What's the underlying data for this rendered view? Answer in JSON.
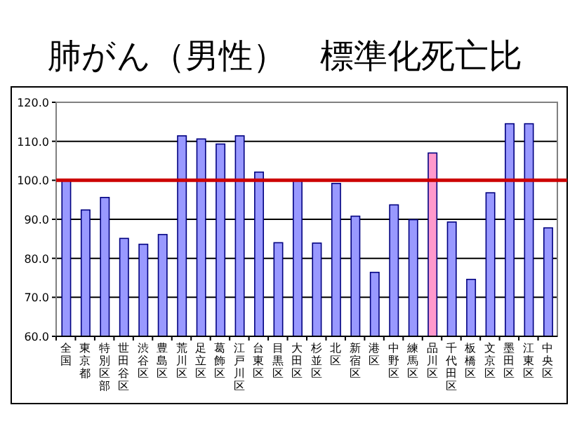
{
  "chart_data": {
    "type": "bar",
    "title": "肺がん（男性）　標準化死亡比",
    "categories": [
      "全国",
      "東京都",
      "特別区部",
      "世田谷区",
      "渋谷区",
      "豊島区",
      "荒川区",
      "足立区",
      "葛飾区",
      "江戸川区",
      "台東区",
      "目黒区",
      "大田区",
      "杉並区",
      "北区",
      "新宿区",
      "港区",
      "中野区",
      "練馬区",
      "品川区",
      "千代田区",
      "板橋区",
      "文京区",
      "墨田区",
      "江東区",
      "中央区"
    ],
    "values": [
      100,
      92.4,
      95.6,
      85.1,
      83.6,
      86.1,
      111.4,
      110.6,
      109.3,
      111.4,
      102.1,
      84.0,
      100,
      83.9,
      99.2,
      90.8,
      76.4,
      93.7,
      89.9,
      107.0,
      89.3,
      74.6,
      96.8,
      114.5,
      114.5,
      87.8
    ],
    "colors": [
      "#9999ff",
      "#9999ff",
      "#9999ff",
      "#9999ff",
      "#9999ff",
      "#9999ff",
      "#9999ff",
      "#9999ff",
      "#9999ff",
      "#9999ff",
      "#9999ff",
      "#9999ff",
      "#9999ff",
      "#9999ff",
      "#9999ff",
      "#9999ff",
      "#9999ff",
      "#9999ff",
      "#9999ff",
      "#ff99cc",
      "#9999ff",
      "#9999ff",
      "#9999ff",
      "#9999ff",
      "#9999ff",
      "#9999ff"
    ],
    "ylim": [
      60,
      120
    ],
    "yticks": [
      {
        "value": 60,
        "label": "60.0"
      },
      {
        "value": 70,
        "label": "70.0"
      },
      {
        "value": 80,
        "label": "80.0"
      },
      {
        "value": 90,
        "label": "90.0"
      },
      {
        "value": 100,
        "label": "100.0"
      },
      {
        "value": 110,
        "label": "110.0"
      },
      {
        "value": 120,
        "label": "120.0"
      }
    ],
    "grid": "y",
    "ref_lines": [
      {
        "axis": "y",
        "value": 100,
        "color": "#cc0000"
      }
    ]
  }
}
